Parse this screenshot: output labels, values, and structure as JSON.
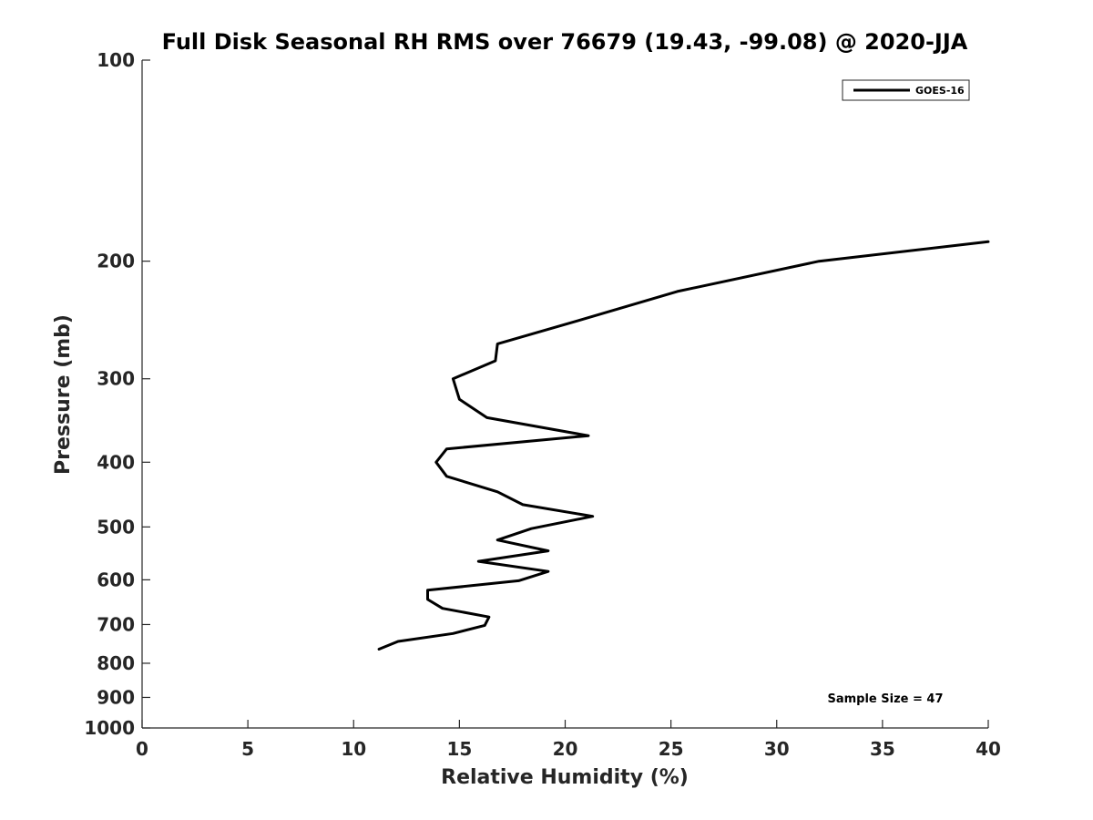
{
  "chart_data": {
    "type": "line",
    "title": "Full Disk Seasonal RH RMS over 76679 (19.43, -99.08) @ 2020-JJA",
    "xlabel": "Relative Humidity (%)",
    "ylabel": "Pressure (mb)",
    "xlim": [
      0,
      40
    ],
    "ylim": [
      100,
      1000
    ],
    "y_scale": "log",
    "y_reversed": true,
    "x_ticks": [
      0,
      5,
      10,
      15,
      20,
      25,
      30,
      35,
      40
    ],
    "x_tick_labels": [
      "0",
      "5",
      "10",
      "15",
      "20",
      "25",
      "30",
      "35",
      "40"
    ],
    "y_ticks": [
      100,
      200,
      300,
      400,
      500,
      600,
      700,
      800,
      900,
      1000
    ],
    "y_tick_labels": [
      "100",
      "200",
      "300",
      "400",
      "500",
      "600",
      "700",
      "800",
      "900",
      "1000"
    ],
    "grid": false,
    "legend_position": "top-right",
    "series": [
      {
        "name": "GOES-16",
        "color": "#000000",
        "points": [
          {
            "x": 40.0,
            "y": 187
          },
          {
            "x": 32.0,
            "y": 200
          },
          {
            "x": 25.3,
            "y": 222
          },
          {
            "x": 20.7,
            "y": 245
          },
          {
            "x": 16.8,
            "y": 266
          },
          {
            "x": 16.7,
            "y": 282
          },
          {
            "x": 14.7,
            "y": 300
          },
          {
            "x": 15.0,
            "y": 322
          },
          {
            "x": 16.3,
            "y": 343
          },
          {
            "x": 21.1,
            "y": 365
          },
          {
            "x": 14.4,
            "y": 382
          },
          {
            "x": 13.9,
            "y": 400
          },
          {
            "x": 14.4,
            "y": 420
          },
          {
            "x": 16.8,
            "y": 443
          },
          {
            "x": 18.0,
            "y": 463
          },
          {
            "x": 21.3,
            "y": 482
          },
          {
            "x": 18.4,
            "y": 503
          },
          {
            "x": 16.8,
            "y": 523
          },
          {
            "x": 19.2,
            "y": 543
          },
          {
            "x": 15.9,
            "y": 563
          },
          {
            "x": 19.2,
            "y": 583
          },
          {
            "x": 17.8,
            "y": 602
          },
          {
            "x": 13.5,
            "y": 622
          },
          {
            "x": 13.5,
            "y": 642
          },
          {
            "x": 14.2,
            "y": 662
          },
          {
            "x": 16.4,
            "y": 682
          },
          {
            "x": 16.2,
            "y": 702
          },
          {
            "x": 14.7,
            "y": 722
          },
          {
            "x": 12.1,
            "y": 742
          },
          {
            "x": 11.2,
            "y": 762
          }
        ]
      }
    ],
    "annotations": [
      {
        "text": "Sample Size = 47"
      }
    ]
  }
}
